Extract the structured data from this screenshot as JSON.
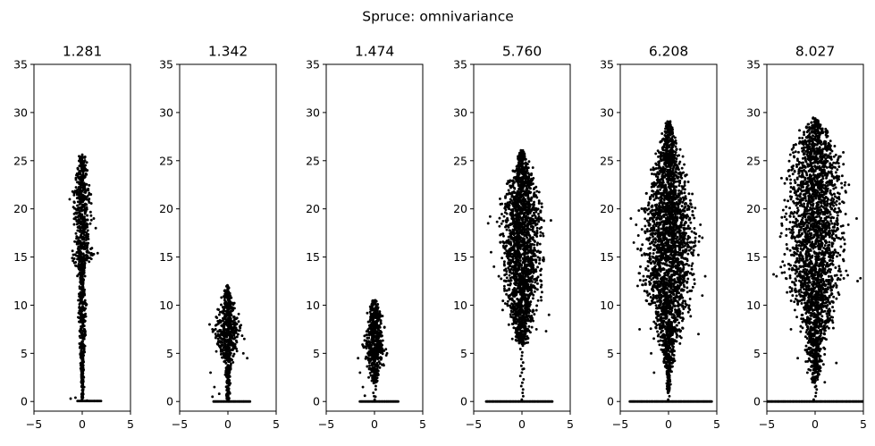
{
  "figure": {
    "suptitle": "Spruce: omnivariance",
    "point_color": "#000000"
  },
  "chart_data": [
    {
      "type": "scatter",
      "title": "1.281",
      "xlim": [
        -5,
        5
      ],
      "ylim": [
        -1,
        35
      ],
      "xticks": [
        -5,
        0,
        5
      ],
      "yticks": [
        0,
        5,
        10,
        15,
        20,
        25,
        30,
        35
      ],
      "grid": false,
      "shape": {
        "base": [
          -0.5,
          2.0,
          0.05
        ],
        "top": 25.5,
        "crown": [
          [
            0,
            0.1
          ],
          [
            8,
            0.5
          ],
          [
            10,
            0.6
          ],
          [
            12,
            0.3
          ],
          [
            14,
            0.8
          ],
          [
            15,
            1.6
          ],
          [
            16,
            1.2
          ],
          [
            17,
            0.9
          ],
          [
            18,
            1.0
          ],
          [
            20,
            1.3
          ],
          [
            21,
            1.2
          ],
          [
            22,
            1.1
          ],
          [
            23,
            0.9
          ],
          [
            24,
            0.7
          ],
          [
            25,
            0.5
          ]
        ]
      },
      "points": [
        [
          -1.3,
          21.0
        ],
        [
          -1.0,
          21.8
        ],
        [
          -0.6,
          23.5
        ],
        [
          -0.2,
          25.1
        ],
        [
          0.3,
          25.4
        ],
        [
          0.4,
          24.0
        ],
        [
          0.6,
          22.0
        ],
        [
          0.9,
          21.5
        ],
        [
          1.2,
          19.0
        ],
        [
          1.4,
          18.0
        ],
        [
          -0.4,
          15.6
        ],
        [
          0.0,
          15.0
        ],
        [
          0.6,
          14.9
        ],
        [
          1.2,
          15.3
        ],
        [
          1.6,
          15.4
        ],
        [
          0.3,
          10.5
        ],
        [
          0.4,
          10.0
        ],
        [
          0.2,
          7.5
        ],
        [
          0.1,
          5.0
        ],
        [
          0.1,
          3.5
        ],
        [
          0.2,
          1.5
        ],
        [
          -1.2,
          0.3
        ],
        [
          -0.7,
          0.4
        ],
        [
          0.5,
          0.1
        ]
      ]
    },
    {
      "type": "scatter",
      "title": "1.342",
      "xlim": [
        -5,
        5
      ],
      "ylim": [
        -1,
        35
      ],
      "xticks": [
        -5,
        0,
        5
      ],
      "yticks": [
        0,
        5,
        10,
        15,
        20,
        25,
        30,
        35
      ],
      "grid": false,
      "shape": {
        "base": [
          -1.5,
          2.3,
          0.0
        ],
        "top": 12.0,
        "crown": [
          [
            0,
            0.2
          ],
          [
            4,
            0.5
          ],
          [
            5,
            1.0
          ],
          [
            6,
            1.5
          ],
          [
            7,
            1.7
          ],
          [
            8,
            1.6
          ],
          [
            9,
            1.3
          ],
          [
            10,
            1.0
          ],
          [
            11,
            0.6
          ],
          [
            12,
            0.2
          ]
        ]
      },
      "points": [
        [
          -1.9,
          8.0
        ],
        [
          -1.6,
          7.5
        ],
        [
          1.7,
          6.5
        ],
        [
          2.0,
          4.5
        ],
        [
          1.6,
          5.0
        ],
        [
          -1.2,
          5.2
        ],
        [
          -1.8,
          3.0
        ],
        [
          -1.4,
          1.5
        ],
        [
          -1.6,
          0.5
        ],
        [
          -0.9,
          0.8
        ],
        [
          0.1,
          11.8
        ],
        [
          -0.3,
          11.0
        ]
      ]
    },
    {
      "type": "scatter",
      "title": "1.474",
      "xlim": [
        -5,
        5
      ],
      "ylim": [
        -1,
        35
      ],
      "xticks": [
        -5,
        0,
        5
      ],
      "yticks": [
        0,
        5,
        10,
        15,
        20,
        25,
        30,
        35
      ],
      "grid": false,
      "shape": {
        "base": [
          -1.5,
          2.5,
          0.0
        ],
        "top": 10.5,
        "crown": [
          [
            2,
            0.3
          ],
          [
            3,
            0.6
          ],
          [
            4,
            1.1
          ],
          [
            5,
            1.4
          ],
          [
            6,
            1.5
          ],
          [
            7,
            1.3
          ],
          [
            8,
            1.1
          ],
          [
            9,
            0.9
          ],
          [
            10,
            0.6
          ],
          [
            10.5,
            0.3
          ]
        ]
      },
      "points": [
        [
          -1.7,
          4.5
        ],
        [
          -1.5,
          3.0
        ],
        [
          1.3,
          5.0
        ],
        [
          -1.2,
          1.5
        ],
        [
          -1.0,
          0.6
        ],
        [
          0.1,
          0.5
        ],
        [
          -0.6,
          2.5
        ],
        [
          0.2,
          10.4
        ]
      ]
    },
    {
      "type": "scatter",
      "title": "5.760",
      "xlim": [
        -5,
        5
      ],
      "ylim": [
        -1,
        35
      ],
      "xticks": [
        -5,
        0,
        5
      ],
      "yticks": [
        0,
        5,
        10,
        15,
        20,
        25,
        30,
        35
      ],
      "grid": false,
      "shape": {
        "base": [
          -3.7,
          3.2,
          0.0
        ],
        "top": 26.0,
        "crown": [
          [
            6,
            0.8
          ],
          [
            8,
            1.5
          ],
          [
            10,
            2.0
          ],
          [
            12,
            2.3
          ],
          [
            14,
            2.5
          ],
          [
            16,
            2.7
          ],
          [
            18,
            2.9
          ],
          [
            19,
            3.0
          ],
          [
            20,
            2.6
          ],
          [
            21,
            2.3
          ],
          [
            22,
            2.0
          ],
          [
            23,
            1.7
          ],
          [
            24,
            1.3
          ],
          [
            25,
            0.8
          ],
          [
            26,
            0.3
          ]
        ]
      },
      "points": [
        [
          -3.5,
          18.5
        ],
        [
          -3.3,
          19.2
        ],
        [
          3.0,
          18.8
        ],
        [
          -3.2,
          15.5
        ],
        [
          -2.9,
          14.0
        ],
        [
          -2.4,
          13.0
        ],
        [
          -1.8,
          11.5
        ],
        [
          2.0,
          10.5
        ],
        [
          2.8,
          9.0
        ],
        [
          -2.0,
          9.5
        ],
        [
          1.5,
          7.5
        ],
        [
          -1.0,
          6.5
        ],
        [
          2.5,
          7.3
        ],
        [
          0.2,
          3.4
        ],
        [
          2.0,
          12.5
        ],
        [
          -1.3,
          11.0
        ]
      ]
    },
    {
      "type": "scatter",
      "title": "6.208",
      "xlim": [
        -5,
        5
      ],
      "ylim": [
        -1,
        35
      ],
      "xticks": [
        -5,
        0,
        5
      ],
      "yticks": [
        0,
        5,
        10,
        15,
        20,
        25,
        30,
        35
      ],
      "grid": false,
      "shape": {
        "base": [
          -4.0,
          4.5,
          0.0
        ],
        "top": 29.0,
        "crown": [
          [
            1,
            0.2
          ],
          [
            3,
            0.4
          ],
          [
            5,
            1.0
          ],
          [
            7,
            1.8
          ],
          [
            9,
            2.3
          ],
          [
            11,
            3.0
          ],
          [
            12,
            3.4
          ],
          [
            13,
            3.8
          ],
          [
            14,
            3.5
          ],
          [
            15,
            3.2
          ],
          [
            16,
            3.8
          ],
          [
            17,
            3.6
          ],
          [
            18,
            3.5
          ],
          [
            19,
            3.9
          ],
          [
            20,
            3.5
          ],
          [
            21,
            3.0
          ],
          [
            22,
            2.8
          ],
          [
            23,
            2.5
          ],
          [
            24,
            2.2
          ],
          [
            25,
            1.9
          ],
          [
            26,
            1.5
          ],
          [
            27,
            1.1
          ],
          [
            28,
            0.7
          ],
          [
            29,
            0.3
          ]
        ]
      },
      "points": [
        [
          -3.9,
          19.0
        ],
        [
          -3.6,
          16.5
        ],
        [
          -3.2,
          12.0
        ],
        [
          3.8,
          13.0
        ],
        [
          3.5,
          17.0
        ],
        [
          -3.0,
          7.5
        ],
        [
          3.1,
          7.0
        ],
        [
          -1.8,
          5.0
        ],
        [
          -1.5,
          3.0
        ],
        [
          0.0,
          1.0
        ],
        [
          0.1,
          2.5
        ],
        [
          -0.2,
          5.0
        ],
        [
          3.5,
          11.0
        ]
      ]
    },
    {
      "type": "scatter",
      "title": "8.027",
      "xlim": [
        -5,
        5
      ],
      "ylim": [
        -1,
        35
      ],
      "xticks": [
        -5,
        0,
        5
      ],
      "yticks": [
        0,
        5,
        10,
        15,
        20,
        25,
        30,
        35
      ],
      "grid": false,
      "shape": {
        "base": [
          -5.0,
          5.0,
          0.0
        ],
        "top": 29.5,
        "crown": [
          [
            2,
            0.4
          ],
          [
            4,
            1.0
          ],
          [
            6,
            1.5
          ],
          [
            8,
            2.2
          ],
          [
            10,
            2.8
          ],
          [
            12,
            3.4
          ],
          [
            13,
            4.0
          ],
          [
            14,
            3.8
          ],
          [
            16,
            3.9
          ],
          [
            18,
            3.9
          ],
          [
            20,
            4.0
          ],
          [
            21,
            3.8
          ],
          [
            22,
            3.5
          ],
          [
            23,
            3.7
          ],
          [
            24,
            3.6
          ],
          [
            25,
            3.3
          ],
          [
            26,
            3.0
          ],
          [
            27,
            2.5
          ],
          [
            28,
            1.8
          ],
          [
            29,
            0.9
          ],
          [
            29.5,
            0.3
          ]
        ]
      },
      "points": [
        [
          -4.3,
          13.2
        ],
        [
          -4.0,
          13.0
        ],
        [
          4.4,
          12.5
        ],
        [
          4.7,
          12.8
        ],
        [
          4.3,
          19.0
        ],
        [
          -3.0,
          19.5
        ],
        [
          -2.5,
          21.0
        ],
        [
          3.5,
          22.5
        ],
        [
          -2.5,
          7.5
        ],
        [
          2.2,
          4.0
        ],
        [
          0.0,
          1.5
        ],
        [
          -0.8,
          3.0
        ],
        [
          1.0,
          2.0
        ],
        [
          -1.8,
          4.5
        ]
      ]
    }
  ]
}
